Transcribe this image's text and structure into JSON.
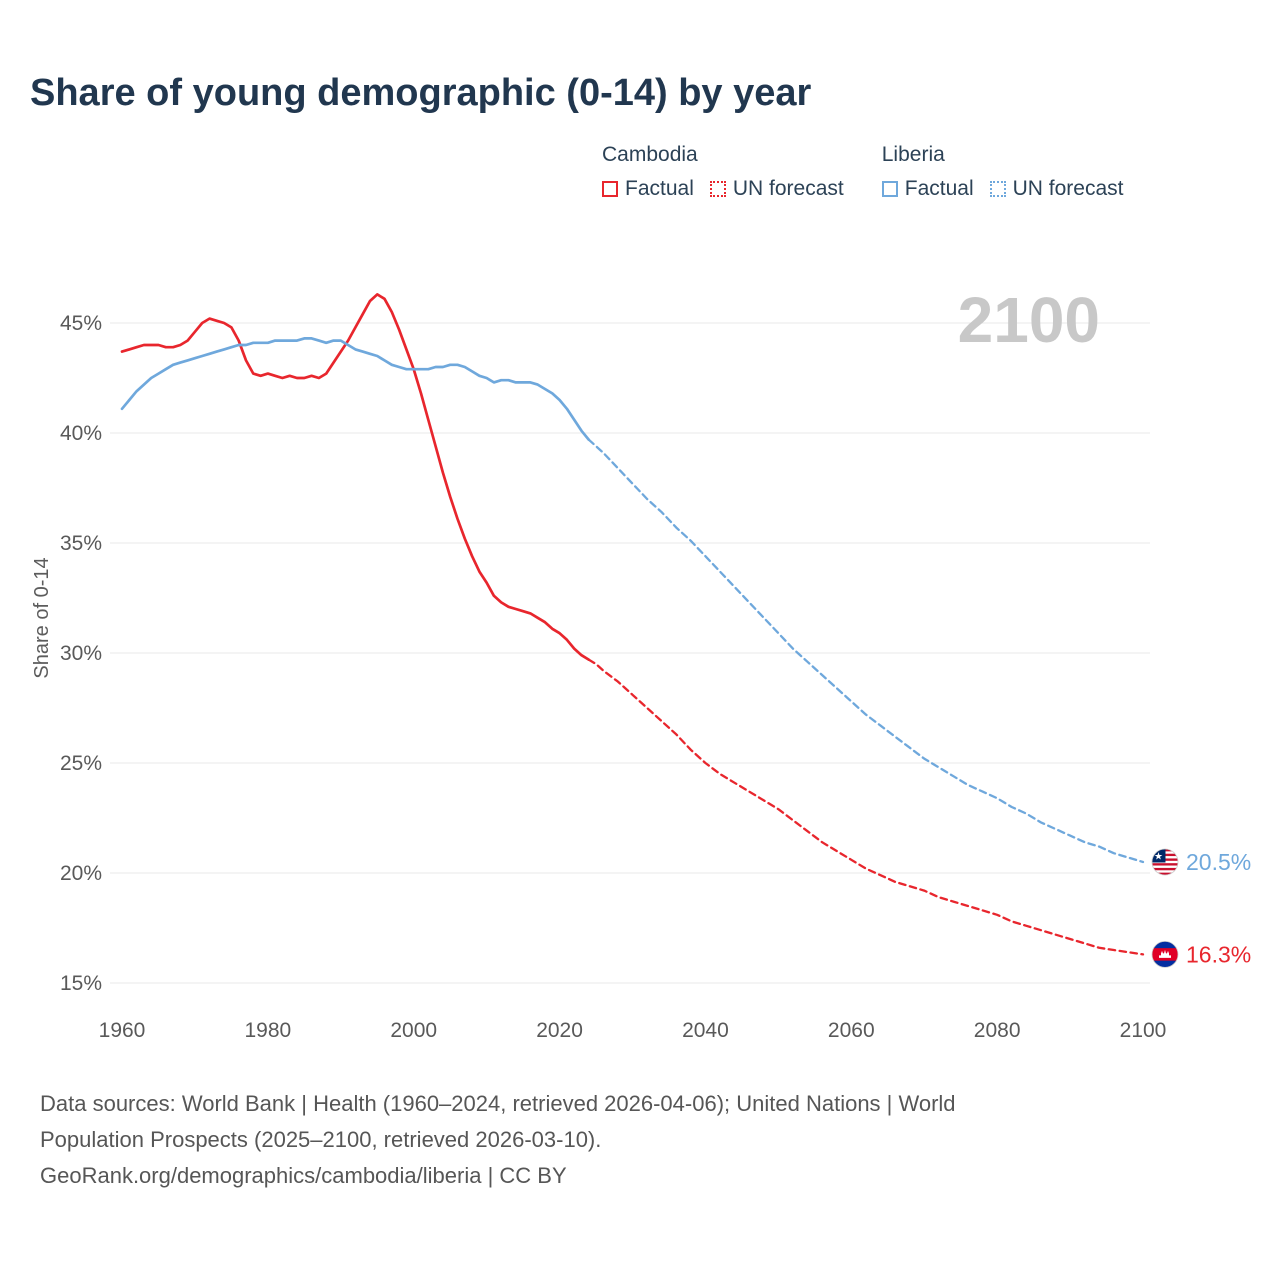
{
  "title": "Share of young demographic (0-14) by year",
  "colors": {
    "cambodia": "#e8262d",
    "liberia": "#6fa8dc",
    "watermark": "#c8c8c8"
  },
  "legend": {
    "groups": [
      {
        "label": "Cambodia",
        "factual_label": "Factual",
        "forecast_label": "UN forecast"
      },
      {
        "label": "Liberia",
        "factual_label": "Factual",
        "forecast_label": "UN forecast"
      }
    ]
  },
  "footer": {
    "lines": [
      "Data sources: World Bank | Health (1960–2024, retrieved 2026-04-06); United Nations | World",
      "Population Prospects (2025–2100, retrieved 2026-03-10).",
      "GeoRank.org/demographics/cambodia/liberia | CC BY"
    ]
  },
  "chart_data": {
    "type": "line",
    "title": "Share of young demographic (0-14) by year",
    "xlabel": "",
    "ylabel": "Share of 0-14",
    "xlim": [
      1958,
      2101
    ],
    "ylim": [
      14.5,
      46.5
    ],
    "grid": "horizontal",
    "legend_position": "top",
    "watermark": "2100",
    "yticks": [
      {
        "value": 15,
        "label": "15%"
      },
      {
        "value": 20,
        "label": "20%"
      },
      {
        "value": 25,
        "label": "25%"
      },
      {
        "value": 30,
        "label": "30%"
      },
      {
        "value": 35,
        "label": "35%"
      },
      {
        "value": 40,
        "label": "40%"
      },
      {
        "value": 45,
        "label": "45%"
      }
    ],
    "xticks": [
      {
        "value": 1960,
        "label": "1960"
      },
      {
        "value": 1980,
        "label": "1980"
      },
      {
        "value": 2000,
        "label": "2000"
      },
      {
        "value": 2020,
        "label": "2020"
      },
      {
        "value": 2040,
        "label": "2040"
      },
      {
        "value": 2060,
        "label": "2060"
      },
      {
        "value": 2080,
        "label": "2080"
      },
      {
        "value": 2100,
        "label": "2100"
      }
    ],
    "series": [
      {
        "id": "cambodia-factual",
        "name": "Cambodia Factual",
        "color_key": "cambodia",
        "style": "solid",
        "points": [
          [
            1960,
            43.7
          ],
          [
            1961,
            43.8
          ],
          [
            1962,
            43.9
          ],
          [
            1963,
            44.0
          ],
          [
            1964,
            44.0
          ],
          [
            1965,
            44.0
          ],
          [
            1966,
            43.9
          ],
          [
            1967,
            43.9
          ],
          [
            1968,
            44.0
          ],
          [
            1969,
            44.2
          ],
          [
            1970,
            44.6
          ],
          [
            1971,
            45.0
          ],
          [
            1972,
            45.2
          ],
          [
            1973,
            45.1
          ],
          [
            1974,
            45.0
          ],
          [
            1975,
            44.8
          ],
          [
            1976,
            44.2
          ],
          [
            1977,
            43.3
          ],
          [
            1978,
            42.7
          ],
          [
            1979,
            42.6
          ],
          [
            1980,
            42.7
          ],
          [
            1981,
            42.6
          ],
          [
            1982,
            42.5
          ],
          [
            1983,
            42.6
          ],
          [
            1984,
            42.5
          ],
          [
            1985,
            42.5
          ],
          [
            1986,
            42.6
          ],
          [
            1987,
            42.5
          ],
          [
            1988,
            42.7
          ],
          [
            1989,
            43.2
          ],
          [
            1990,
            43.7
          ],
          [
            1991,
            44.2
          ],
          [
            1992,
            44.8
          ],
          [
            1993,
            45.4
          ],
          [
            1994,
            46.0
          ],
          [
            1995,
            46.3
          ],
          [
            1996,
            46.1
          ],
          [
            1997,
            45.5
          ],
          [
            1998,
            44.7
          ],
          [
            1999,
            43.8
          ],
          [
            2000,
            42.9
          ],
          [
            2001,
            41.8
          ],
          [
            2002,
            40.6
          ],
          [
            2003,
            39.4
          ],
          [
            2004,
            38.2
          ],
          [
            2005,
            37.1
          ],
          [
            2006,
            36.1
          ],
          [
            2007,
            35.2
          ],
          [
            2008,
            34.4
          ],
          [
            2009,
            33.7
          ],
          [
            2010,
            33.2
          ],
          [
            2011,
            32.6
          ],
          [
            2012,
            32.3
          ],
          [
            2013,
            32.1
          ],
          [
            2014,
            32.0
          ],
          [
            2015,
            31.9
          ],
          [
            2016,
            31.8
          ],
          [
            2017,
            31.6
          ],
          [
            2018,
            31.4
          ],
          [
            2019,
            31.1
          ],
          [
            2020,
            30.9
          ],
          [
            2021,
            30.6
          ],
          [
            2022,
            30.2
          ],
          [
            2023,
            29.9
          ],
          [
            2024,
            29.7
          ]
        ]
      },
      {
        "id": "cambodia-forecast",
        "name": "Cambodia UN forecast",
        "color_key": "cambodia",
        "style": "dashed",
        "points": [
          [
            2024,
            29.7
          ],
          [
            2025,
            29.5
          ],
          [
            2026,
            29.2
          ],
          [
            2028,
            28.7
          ],
          [
            2030,
            28.1
          ],
          [
            2032,
            27.5
          ],
          [
            2034,
            26.9
          ],
          [
            2036,
            26.3
          ],
          [
            2038,
            25.6
          ],
          [
            2040,
            25.0
          ],
          [
            2042,
            24.5
          ],
          [
            2044,
            24.1
          ],
          [
            2046,
            23.7
          ],
          [
            2048,
            23.3
          ],
          [
            2050,
            22.9
          ],
          [
            2052,
            22.4
          ],
          [
            2054,
            21.9
          ],
          [
            2056,
            21.4
          ],
          [
            2058,
            21.0
          ],
          [
            2060,
            20.6
          ],
          [
            2062,
            20.2
          ],
          [
            2064,
            19.9
          ],
          [
            2066,
            19.6
          ],
          [
            2068,
            19.4
          ],
          [
            2070,
            19.2
          ],
          [
            2072,
            18.9
          ],
          [
            2074,
            18.7
          ],
          [
            2076,
            18.5
          ],
          [
            2078,
            18.3
          ],
          [
            2080,
            18.1
          ],
          [
            2082,
            17.8
          ],
          [
            2084,
            17.6
          ],
          [
            2086,
            17.4
          ],
          [
            2088,
            17.2
          ],
          [
            2090,
            17.0
          ],
          [
            2092,
            16.8
          ],
          [
            2094,
            16.6
          ],
          [
            2096,
            16.5
          ],
          [
            2098,
            16.4
          ],
          [
            2100,
            16.3
          ]
        ]
      },
      {
        "id": "liberia-factual",
        "name": "Liberia Factual",
        "color_key": "liberia",
        "style": "solid",
        "points": [
          [
            1960,
            41.1
          ],
          [
            1961,
            41.5
          ],
          [
            1962,
            41.9
          ],
          [
            1963,
            42.2
          ],
          [
            1964,
            42.5
          ],
          [
            1965,
            42.7
          ],
          [
            1966,
            42.9
          ],
          [
            1967,
            43.1
          ],
          [
            1968,
            43.2
          ],
          [
            1969,
            43.3
          ],
          [
            1970,
            43.4
          ],
          [
            1971,
            43.5
          ],
          [
            1972,
            43.6
          ],
          [
            1973,
            43.7
          ],
          [
            1974,
            43.8
          ],
          [
            1975,
            43.9
          ],
          [
            1976,
            44.0
          ],
          [
            1977,
            44.0
          ],
          [
            1978,
            44.1
          ],
          [
            1979,
            44.1
          ],
          [
            1980,
            44.1
          ],
          [
            1981,
            44.2
          ],
          [
            1982,
            44.2
          ],
          [
            1983,
            44.2
          ],
          [
            1984,
            44.2
          ],
          [
            1985,
            44.3
          ],
          [
            1986,
            44.3
          ],
          [
            1987,
            44.2
          ],
          [
            1988,
            44.1
          ],
          [
            1989,
            44.2
          ],
          [
            1990,
            44.2
          ],
          [
            1991,
            44.0
          ],
          [
            1992,
            43.8
          ],
          [
            1993,
            43.7
          ],
          [
            1994,
            43.6
          ],
          [
            1995,
            43.5
          ],
          [
            1996,
            43.3
          ],
          [
            1997,
            43.1
          ],
          [
            1998,
            43.0
          ],
          [
            1999,
            42.9
          ],
          [
            2000,
            42.9
          ],
          [
            2001,
            42.9
          ],
          [
            2002,
            42.9
          ],
          [
            2003,
            43.0
          ],
          [
            2004,
            43.0
          ],
          [
            2005,
            43.1
          ],
          [
            2006,
            43.1
          ],
          [
            2007,
            43.0
          ],
          [
            2008,
            42.8
          ],
          [
            2009,
            42.6
          ],
          [
            2010,
            42.5
          ],
          [
            2011,
            42.3
          ],
          [
            2012,
            42.4
          ],
          [
            2013,
            42.4
          ],
          [
            2014,
            42.3
          ],
          [
            2015,
            42.3
          ],
          [
            2016,
            42.3
          ],
          [
            2017,
            42.2
          ],
          [
            2018,
            42.0
          ],
          [
            2019,
            41.8
          ],
          [
            2020,
            41.5
          ],
          [
            2021,
            41.1
          ],
          [
            2022,
            40.6
          ],
          [
            2023,
            40.1
          ],
          [
            2024,
            39.7
          ]
        ]
      },
      {
        "id": "liberia-forecast",
        "name": "Liberia UN forecast",
        "color_key": "liberia",
        "style": "dashed",
        "points": [
          [
            2024,
            39.7
          ],
          [
            2025,
            39.4
          ],
          [
            2026,
            39.1
          ],
          [
            2028,
            38.4
          ],
          [
            2030,
            37.7
          ],
          [
            2032,
            37.0
          ],
          [
            2034,
            36.4
          ],
          [
            2036,
            35.7
          ],
          [
            2038,
            35.1
          ],
          [
            2040,
            34.4
          ],
          [
            2042,
            33.7
          ],
          [
            2044,
            33.0
          ],
          [
            2046,
            32.3
          ],
          [
            2048,
            31.6
          ],
          [
            2050,
            30.9
          ],
          [
            2052,
            30.2
          ],
          [
            2054,
            29.6
          ],
          [
            2056,
            29.0
          ],
          [
            2058,
            28.4
          ],
          [
            2060,
            27.8
          ],
          [
            2062,
            27.2
          ],
          [
            2064,
            26.7
          ],
          [
            2066,
            26.2
          ],
          [
            2068,
            25.7
          ],
          [
            2070,
            25.2
          ],
          [
            2072,
            24.8
          ],
          [
            2074,
            24.4
          ],
          [
            2076,
            24.0
          ],
          [
            2078,
            23.7
          ],
          [
            2080,
            23.4
          ],
          [
            2082,
            23.0
          ],
          [
            2084,
            22.7
          ],
          [
            2086,
            22.3
          ],
          [
            2088,
            22.0
          ],
          [
            2090,
            21.7
          ],
          [
            2092,
            21.4
          ],
          [
            2094,
            21.2
          ],
          [
            2096,
            20.9
          ],
          [
            2098,
            20.7
          ],
          [
            2100,
            20.5
          ]
        ]
      }
    ],
    "end_labels": [
      {
        "country": "Liberia",
        "flag": "liberia",
        "value": 20.5,
        "label": "20.5%",
        "color_key": "liberia"
      },
      {
        "country": "Cambodia",
        "flag": "cambodia",
        "value": 16.3,
        "label": "16.3%",
        "color_key": "cambodia"
      }
    ]
  }
}
